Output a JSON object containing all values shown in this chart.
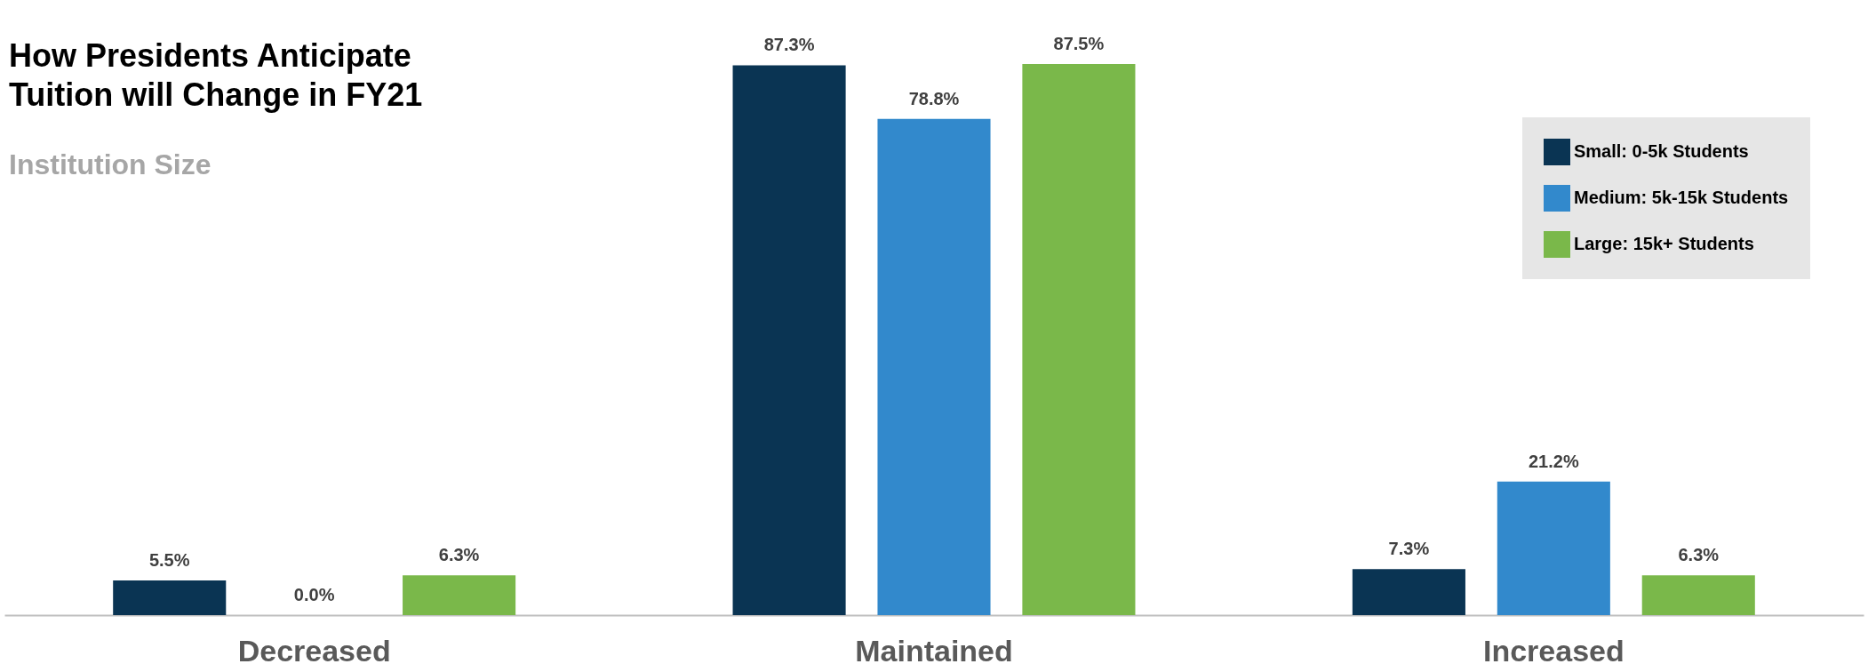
{
  "chart_data": {
    "type": "bar",
    "title": "How Presidents Anticipate Tuition will Change in FY21",
    "subtitle": "Institution Size",
    "categories": [
      "Decreased",
      "Maintained",
      "Increased"
    ],
    "series": [
      {
        "name": "Small: 0-5k Students",
        "color": "#0a3453",
        "values": [
          5.5,
          87.3,
          7.3
        ],
        "value_labels": [
          "5.5%",
          "87.3%",
          "7.3%"
        ]
      },
      {
        "name": "Medium: 5k-15k Students",
        "color": "#3289cc",
        "values": [
          0.0,
          78.8,
          21.2
        ],
        "value_labels": [
          "0.0%",
          "78.8%",
          "21.2%"
        ]
      },
      {
        "name": "Large: 15k+ Students",
        "color": "#7ab84a",
        "values": [
          6.3,
          87.5,
          6.3
        ],
        "value_labels": [
          "6.3%",
          "87.5%",
          "6.3%"
        ]
      }
    ],
    "legend": "top right"
  }
}
